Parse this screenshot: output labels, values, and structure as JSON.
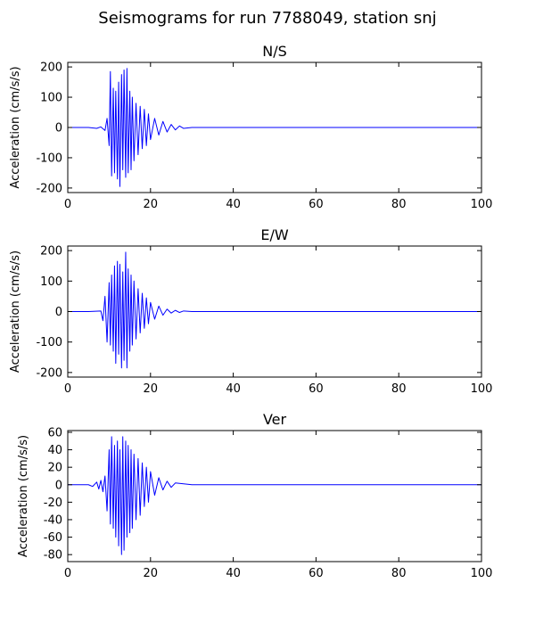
{
  "figure": {
    "title": "Seismograms for run 7788049, station snj"
  },
  "chart_data": [
    {
      "type": "line",
      "title": "N/S",
      "xlabel": "",
      "ylabel": "Acceleration (cm/s/s)",
      "xlim": [
        0,
        100
      ],
      "ylim": [
        -215,
        215
      ],
      "xticks": [
        0,
        20,
        40,
        60,
        80,
        100
      ],
      "yticks": [
        -200,
        -100,
        0,
        100,
        200
      ],
      "grid": false,
      "color": "#0000ff",
      "x": [
        0,
        5,
        7,
        8,
        9,
        9.5,
        10,
        10.3,
        10.6,
        11,
        11.3,
        11.6,
        12,
        12.3,
        12.6,
        13,
        13.3,
        13.6,
        14,
        14.3,
        14.6,
        15,
        15.3,
        15.6,
        16,
        16.5,
        17,
        17.5,
        18,
        18.5,
        19,
        19.5,
        20,
        21,
        22,
        23,
        24,
        25,
        26,
        27,
        28,
        30,
        100
      ],
      "y": [
        0,
        0,
        -3,
        2,
        -10,
        30,
        -60,
        185,
        -160,
        130,
        -150,
        120,
        -170,
        150,
        -195,
        175,
        -140,
        190,
        -165,
        195,
        -150,
        120,
        -140,
        100,
        -110,
        80,
        -90,
        70,
        -70,
        60,
        -60,
        45,
        -40,
        30,
        -25,
        20,
        -15,
        10,
        -8,
        5,
        -3,
        0,
        0
      ]
    },
    {
      "type": "line",
      "title": "E/W",
      "xlabel": "",
      "ylabel": "Acceleration (cm/s/s)",
      "xlim": [
        0,
        100
      ],
      "ylim": [
        -215,
        215
      ],
      "xticks": [
        0,
        20,
        40,
        60,
        80,
        100
      ],
      "yticks": [
        -200,
        -100,
        0,
        100,
        200
      ],
      "grid": false,
      "color": "#0000ff",
      "x": [
        0,
        5,
        8,
        8.5,
        9,
        9.5,
        10,
        10.3,
        10.6,
        11,
        11.3,
        11.6,
        12,
        12.3,
        12.6,
        13,
        13.3,
        13.6,
        14,
        14.3,
        14.6,
        15,
        15.3,
        15.6,
        16,
        16.5,
        17,
        17.5,
        18,
        18.5,
        19,
        19.5,
        20,
        21,
        22,
        23,
        24,
        25,
        26,
        27,
        28,
        30,
        100
      ],
      "y": [
        0,
        0,
        2,
        -30,
        50,
        -100,
        95,
        -110,
        120,
        -130,
        150,
        -170,
        165,
        -140,
        155,
        -185,
        130,
        -160,
        195,
        -185,
        140,
        -130,
        120,
        -110,
        100,
        -90,
        75,
        -70,
        60,
        -55,
        45,
        -40,
        30,
        -25,
        18,
        -12,
        8,
        -5,
        4,
        -3,
        2,
        0,
        0
      ]
    },
    {
      "type": "line",
      "title": "Ver",
      "xlabel": "",
      "ylabel": "Acceleration (cm/s/s)",
      "xlim": [
        0,
        100
      ],
      "ylim": [
        -88,
        62
      ],
      "xticks": [
        0,
        20,
        40,
        60,
        80,
        100
      ],
      "yticks": [
        -80,
        -60,
        -40,
        -20,
        0,
        20,
        40,
        60
      ],
      "grid": false,
      "color": "#0000ff",
      "x": [
        0,
        5,
        6,
        7,
        7.5,
        8,
        8.5,
        9,
        9.5,
        10,
        10.3,
        10.6,
        11,
        11.3,
        11.6,
        12,
        12.3,
        12.6,
        13,
        13.3,
        13.6,
        14,
        14.3,
        14.6,
        15,
        15.3,
        15.6,
        16,
        16.5,
        17,
        17.5,
        18,
        18.5,
        19,
        19.5,
        20,
        21,
        22,
        23,
        24,
        25,
        26,
        30,
        100
      ],
      "y": [
        0,
        0,
        -2,
        3,
        -5,
        5,
        -8,
        10,
        -30,
        40,
        -45,
        55,
        -50,
        45,
        -60,
        50,
        -70,
        40,
        -80,
        55,
        -75,
        50,
        -60,
        45,
        -55,
        40,
        -50,
        35,
        -40,
        30,
        -35,
        25,
        -25,
        20,
        -20,
        15,
        -12,
        8,
        -6,
        4,
        -3,
        2,
        0,
        0
      ]
    }
  ]
}
